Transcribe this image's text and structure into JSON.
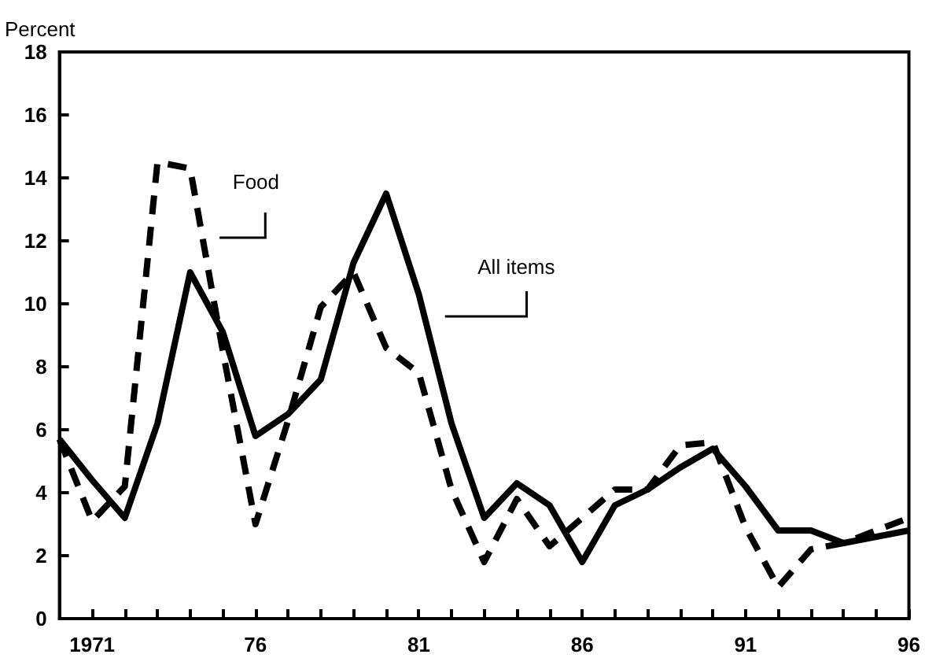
{
  "chart_data": {
    "type": "line",
    "ylabel": "Percent",
    "x": [
      1970,
      1971,
      1972,
      1973,
      1974,
      1975,
      1976,
      1977,
      1978,
      1979,
      1980,
      1981,
      1982,
      1983,
      1984,
      1985,
      1986,
      1987,
      1988,
      1989,
      1990,
      1991,
      1992,
      1993,
      1994,
      1995,
      1996
    ],
    "series": [
      {
        "name": "All items",
        "color": "#000000",
        "line_style": "solid",
        "values": [
          5.7,
          4.4,
          3.2,
          6.2,
          11.0,
          9.1,
          5.8,
          6.5,
          7.6,
          11.3,
          13.5,
          10.3,
          6.2,
          3.2,
          4.3,
          3.6,
          1.8,
          3.6,
          4.1,
          4.8,
          5.4,
          4.2,
          2.8,
          2.8,
          2.4,
          2.6,
          2.8
        ]
      },
      {
        "name": "Food",
        "color": "#000000",
        "line_style": "dashed",
        "values": [
          5.7,
          3.1,
          4.2,
          14.5,
          14.3,
          8.5,
          3.0,
          6.3,
          9.9,
          11.0,
          8.6,
          7.8,
          4.1,
          1.8,
          3.8,
          2.3,
          3.2,
          4.1,
          4.1,
          5.5,
          5.6,
          2.9,
          1.0,
          2.2,
          2.4,
          2.8,
          3.2
        ]
      }
    ],
    "xlim": [
      1970,
      1996
    ],
    "xticks": [
      {
        "value": 1970,
        "label": null
      },
      {
        "value": 1971,
        "label": "1971"
      },
      {
        "value": 1972,
        "label": null
      },
      {
        "value": 1973,
        "label": null
      },
      {
        "value": 1974,
        "label": null
      },
      {
        "value": 1975,
        "label": null
      },
      {
        "value": 1976,
        "label": "76"
      },
      {
        "value": 1977,
        "label": null
      },
      {
        "value": 1978,
        "label": null
      },
      {
        "value": 1979,
        "label": null
      },
      {
        "value": 1980,
        "label": null
      },
      {
        "value": 1981,
        "label": "81"
      },
      {
        "value": 1982,
        "label": null
      },
      {
        "value": 1983,
        "label": null
      },
      {
        "value": 1984,
        "label": null
      },
      {
        "value": 1985,
        "label": null
      },
      {
        "value": 1986,
        "label": "86"
      },
      {
        "value": 1987,
        "label": null
      },
      {
        "value": 1988,
        "label": null
      },
      {
        "value": 1989,
        "label": null
      },
      {
        "value": 1990,
        "label": null
      },
      {
        "value": 1991,
        "label": "91"
      },
      {
        "value": 1992,
        "label": null
      },
      {
        "value": 1993,
        "label": null
      },
      {
        "value": 1994,
        "label": null
      },
      {
        "value": 1995,
        "label": null
      },
      {
        "value": 1996,
        "label": "96"
      }
    ],
    "ylim": [
      0,
      18
    ],
    "yticks": [
      0,
      2,
      4,
      6,
      8,
      10,
      12,
      14,
      16,
      18
    ],
    "grid": false,
    "legend": false,
    "marker": "none"
  }
}
